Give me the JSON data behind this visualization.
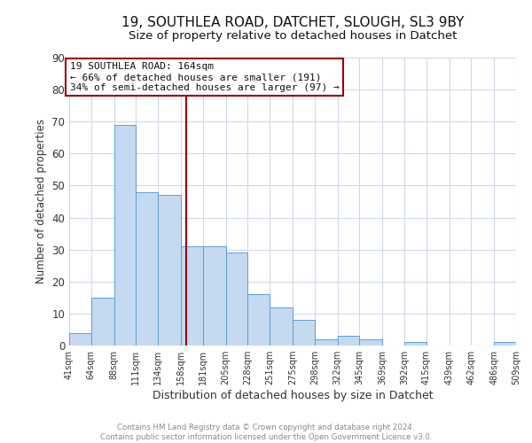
{
  "title_line1": "19, SOUTHLEA ROAD, DATCHET, SLOUGH, SL3 9BY",
  "title_line2": "Size of property relative to detached houses in Datchet",
  "xlabel": "Distribution of detached houses by size in Datchet",
  "ylabel": "Number of detached properties",
  "bar_edges": [
    41,
    64,
    88,
    111,
    134,
    158,
    181,
    205,
    228,
    251,
    275,
    298,
    322,
    345,
    369,
    392,
    415,
    439,
    462,
    486,
    509
  ],
  "bar_heights": [
    4,
    15,
    69,
    48,
    47,
    31,
    31,
    29,
    16,
    12,
    8,
    2,
    3,
    2,
    0,
    1,
    0,
    0,
    0,
    1
  ],
  "bar_color": "#c5d9f1",
  "bar_edgecolor": "#5a9fd4",
  "property_size": 164,
  "vline_color": "#990000",
  "annotation_box_edgecolor": "#990000",
  "annotation_line1": "19 SOUTHLEA ROAD: 164sqm",
  "annotation_line2": "← 66% of detached houses are smaller (191)",
  "annotation_line3": "34% of semi-detached houses are larger (97) →",
  "ylim": [
    0,
    90
  ],
  "yticks": [
    0,
    10,
    20,
    30,
    40,
    50,
    60,
    70,
    80,
    90
  ],
  "tick_labels": [
    "41sqm",
    "64sqm",
    "88sqm",
    "111sqm",
    "134sqm",
    "158sqm",
    "181sqm",
    "205sqm",
    "228sqm",
    "251sqm",
    "275sqm",
    "298sqm",
    "322sqm",
    "345sqm",
    "369sqm",
    "392sqm",
    "415sqm",
    "439sqm",
    "462sqm",
    "486sqm",
    "509sqm"
  ],
  "footer_line1": "Contains HM Land Registry data © Crown copyright and database right 2024.",
  "footer_line2": "Contains public sector information licensed under the Open Government Licence v3.0.",
  "background_color": "#ffffff",
  "grid_color": "#d0d8e8",
  "title_fontsize": 11,
  "subtitle_fontsize": 9.5
}
